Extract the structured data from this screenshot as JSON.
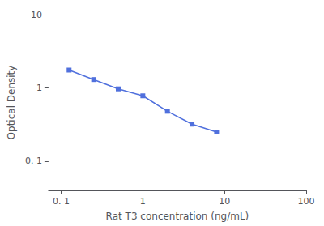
{
  "chart_data": {
    "type": "line",
    "x": [
      0.125,
      0.25,
      0.5,
      1.0,
      2.0,
      4.0,
      8.0
    ],
    "values": [
      1.75,
      1.3,
      0.97,
      0.78,
      0.48,
      0.32,
      0.25
    ],
    "xlabel": "Rat T3 concentration (ng/mL)",
    "ylabel": "Optical Density",
    "log": true,
    "xlim": [
      0.07,
      100
    ],
    "ylim": [
      0.04,
      10
    ],
    "xticks": [
      {
        "value": 0.1,
        "label": "0. 1"
      },
      1,
      10,
      100
    ],
    "yticks": [
      {
        "value": 0.1,
        "label": "0. 1"
      },
      1,
      10
    ],
    "marker": "square",
    "line_style": "solid",
    "grid": false
  }
}
